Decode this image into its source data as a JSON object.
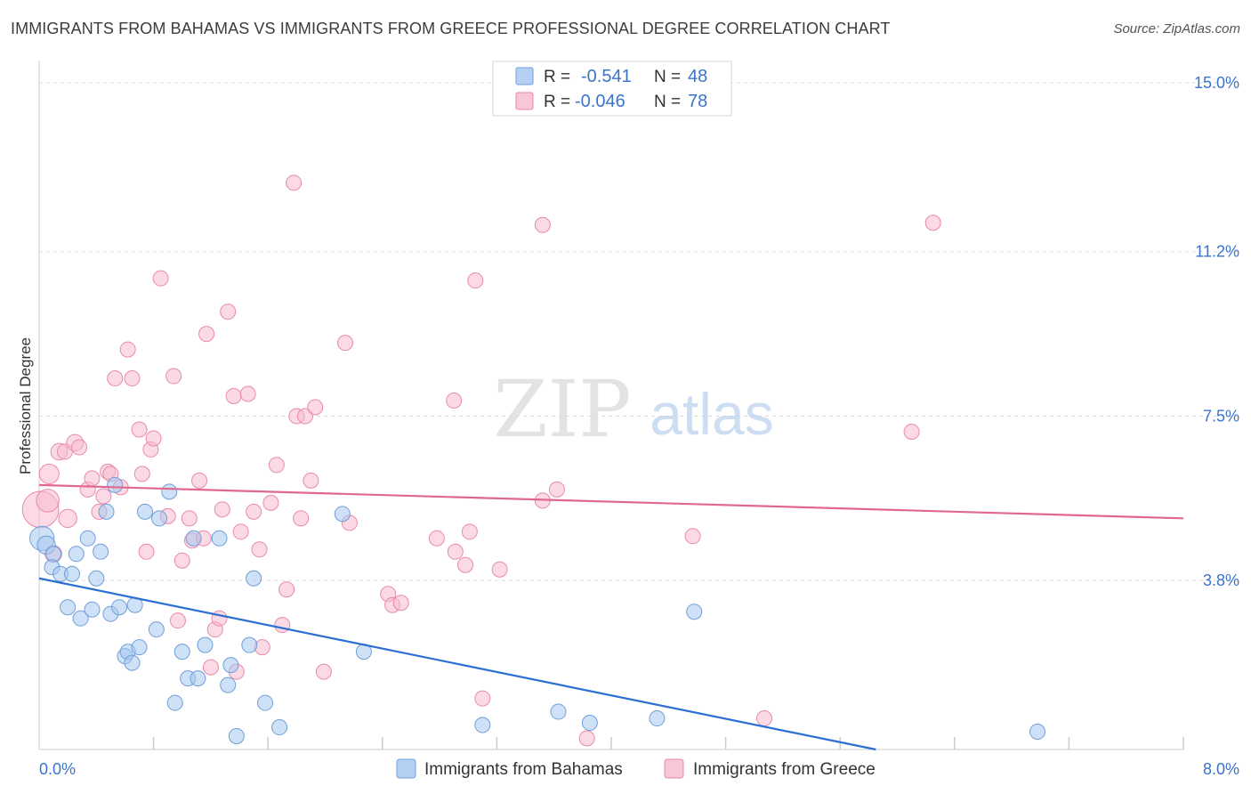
{
  "title": "IMMIGRANTS FROM BAHAMAS VS IMMIGRANTS FROM GREECE PROFESSIONAL DEGREE CORRELATION CHART",
  "source": "Source: ZipAtlas.com",
  "watermark": {
    "zip": "ZIP",
    "atlas": "atlas"
  },
  "colors": {
    "blue_fill": "#a8c8f0",
    "blue_stroke": "#6f9fd8",
    "blue_line": "#2a6fd1",
    "pink_fill": "#f7bcd0",
    "pink_stroke": "#e88aaa",
    "pink_line": "#e06890",
    "accent_text": "#3a74c9",
    "grid": "#dddddd",
    "axis": "#cccccc"
  },
  "legend": {
    "rows": [
      {
        "r_label": "R =",
        "r_value": "-0.541",
        "n_label": "N =",
        "n_value": "48",
        "color": "blue"
      },
      {
        "r_label": "R =",
        "r_value": "-0.046",
        "n_label": "N =",
        "n_value": "78",
        "color": "pink"
      }
    ]
  },
  "bottom_legend": [
    {
      "label": "Immigrants from Bahamas",
      "color": "blue"
    },
    {
      "label": "Immigrants from Greece",
      "color": "pink"
    }
  ],
  "chart_data": {
    "type": "scatter",
    "title": "IMMIGRANTS FROM BAHAMAS VS IMMIGRANTS FROM GREECE PROFESSIONAL DEGREE CORRELATION CHART",
    "xlabel": "",
    "ylabel": "Professional Degree",
    "xlim": [
      0,
      8
    ],
    "ylim": [
      0,
      15.5
    ],
    "x_tick_labels": [
      {
        "value": 0,
        "label": "0.0%"
      },
      {
        "value": 8,
        "label": "8.0%"
      }
    ],
    "y_tick_labels": [
      {
        "value": 3.8,
        "label": "3.8%"
      },
      {
        "value": 7.5,
        "label": "7.5%"
      },
      {
        "value": 11.2,
        "label": "11.2%"
      },
      {
        "value": 15.0,
        "label": "15.0%"
      }
    ],
    "grid": true,
    "legend_position": "top-center",
    "series": [
      {
        "name": "Immigrants from Bahamas",
        "color": "blue",
        "trend": {
          "x": [
            0,
            5.85
          ],
          "y": [
            3.85,
            0.0
          ]
        },
        "points": [
          [
            0.02,
            4.75,
            1.6
          ],
          [
            0.05,
            4.6,
            1.2
          ],
          [
            0.1,
            4.4,
            1.0
          ],
          [
            0.09,
            4.1,
            1.0
          ],
          [
            0.15,
            3.95,
            1.0
          ],
          [
            0.23,
            3.95,
            1.0
          ],
          [
            0.2,
            3.2,
            1.0
          ],
          [
            0.29,
            2.95,
            1.0
          ],
          [
            0.26,
            4.4,
            1.0
          ],
          [
            0.34,
            4.75,
            1.0
          ],
          [
            0.37,
            3.15,
            1.0
          ],
          [
            0.4,
            3.85,
            1.0
          ],
          [
            0.43,
            4.45,
            1.0
          ],
          [
            0.47,
            5.35,
            1.0
          ],
          [
            0.5,
            3.05,
            1.0
          ],
          [
            0.53,
            5.95,
            1.0
          ],
          [
            0.56,
            3.2,
            1.0
          ],
          [
            0.6,
            2.1,
            1.0
          ],
          [
            0.62,
            2.2,
            1.0
          ],
          [
            0.65,
            1.95,
            1.0
          ],
          [
            0.67,
            3.25,
            1.0
          ],
          [
            0.7,
            2.3,
            1.0
          ],
          [
            0.74,
            5.35,
            1.0
          ],
          [
            0.82,
            2.7,
            1.0
          ],
          [
            0.84,
            5.2,
            1.0
          ],
          [
            0.91,
            5.8,
            1.0
          ],
          [
            0.95,
            1.05,
            1.0
          ],
          [
            1.0,
            2.2,
            1.0
          ],
          [
            1.04,
            1.6,
            1.0
          ],
          [
            1.08,
            4.75,
            1.0
          ],
          [
            1.11,
            1.6,
            1.0
          ],
          [
            1.16,
            2.35,
            1.0
          ],
          [
            1.26,
            4.75,
            1.0
          ],
          [
            1.32,
            1.45,
            1.0
          ],
          [
            1.34,
            1.9,
            1.0
          ],
          [
            1.38,
            0.3,
            1.0
          ],
          [
            1.47,
            2.35,
            1.0
          ],
          [
            1.5,
            3.85,
            1.0
          ],
          [
            1.58,
            1.05,
            1.0
          ],
          [
            1.68,
            0.5,
            1.0
          ],
          [
            2.12,
            5.3,
            1.0
          ],
          [
            2.27,
            2.2,
            1.0
          ],
          [
            3.1,
            0.55,
            1.0
          ],
          [
            3.63,
            0.85,
            1.0
          ],
          [
            3.85,
            0.6,
            1.0
          ],
          [
            4.32,
            0.7,
            1.0
          ],
          [
            4.58,
            3.1,
            1.0
          ],
          [
            6.98,
            0.4,
            1.0
          ]
        ]
      },
      {
        "name": "Immigrants from Greece",
        "color": "pink",
        "trend": {
          "x": [
            0,
            8
          ],
          "y": [
            5.95,
            5.2
          ]
        },
        "points": [
          [
            0.01,
            5.4,
            2.4
          ],
          [
            0.06,
            5.6,
            1.5
          ],
          [
            0.07,
            6.2,
            1.3
          ],
          [
            0.1,
            4.4,
            1.1
          ],
          [
            0.14,
            6.7,
            1.1
          ],
          [
            0.18,
            6.7,
            1.0
          ],
          [
            0.2,
            5.2,
            1.2
          ],
          [
            0.25,
            6.9,
            1.1
          ],
          [
            0.28,
            6.8,
            1.0
          ],
          [
            0.34,
            5.85,
            1.0
          ],
          [
            0.37,
            6.1,
            1.0
          ],
          [
            0.42,
            5.35,
            1.0
          ],
          [
            0.45,
            5.7,
            1.0
          ],
          [
            0.48,
            6.25,
            1.0
          ],
          [
            0.5,
            6.2,
            1.0
          ],
          [
            0.53,
            8.35,
            1.0
          ],
          [
            0.57,
            5.9,
            1.0
          ],
          [
            0.62,
            9.0,
            1.0
          ],
          [
            0.65,
            8.35,
            1.0
          ],
          [
            0.7,
            7.2,
            1.0
          ],
          [
            0.72,
            6.2,
            1.0
          ],
          [
            0.75,
            4.45,
            1.0
          ],
          [
            0.78,
            6.75,
            1.0
          ],
          [
            0.8,
            7.0,
            1.0
          ],
          [
            0.85,
            10.6,
            1.0
          ],
          [
            0.9,
            5.25,
            1.0
          ],
          [
            0.94,
            8.4,
            1.0
          ],
          [
            0.97,
            2.9,
            1.0
          ],
          [
            1.0,
            4.25,
            1.0
          ],
          [
            1.05,
            5.2,
            1.0
          ],
          [
            1.07,
            4.7,
            1.0
          ],
          [
            1.12,
            6.05,
            1.0
          ],
          [
            1.15,
            4.75,
            1.0
          ],
          [
            1.17,
            9.35,
            1.0
          ],
          [
            1.2,
            1.85,
            1.0
          ],
          [
            1.23,
            2.7,
            1.0
          ],
          [
            1.26,
            2.95,
            1.0
          ],
          [
            1.28,
            5.4,
            1.0
          ],
          [
            1.32,
            9.85,
            1.0
          ],
          [
            1.36,
            7.95,
            1.0
          ],
          [
            1.38,
            1.75,
            1.0
          ],
          [
            1.41,
            4.9,
            1.0
          ],
          [
            1.46,
            8.0,
            1.0
          ],
          [
            1.5,
            5.35,
            1.0
          ],
          [
            1.54,
            4.5,
            1.0
          ],
          [
            1.56,
            2.3,
            1.0
          ],
          [
            1.62,
            5.55,
            1.0
          ],
          [
            1.66,
            6.4,
            1.0
          ],
          [
            1.7,
            2.8,
            1.0
          ],
          [
            1.73,
            3.6,
            1.0
          ],
          [
            1.78,
            12.75,
            1.0
          ],
          [
            1.8,
            7.5,
            1.0
          ],
          [
            1.83,
            5.2,
            1.0
          ],
          [
            1.86,
            7.5,
            1.0
          ],
          [
            1.9,
            6.05,
            1.0
          ],
          [
            1.93,
            7.7,
            1.0
          ],
          [
            1.99,
            1.75,
            1.0
          ],
          [
            2.14,
            9.15,
            1.0
          ],
          [
            2.17,
            5.1,
            1.0
          ],
          [
            2.44,
            3.5,
            1.0
          ],
          [
            2.47,
            3.25,
            1.0
          ],
          [
            2.53,
            3.3,
            1.0
          ],
          [
            2.78,
            4.75,
            1.0
          ],
          [
            2.9,
            7.85,
            1.0
          ],
          [
            2.91,
            4.45,
            1.0
          ],
          [
            2.98,
            4.15,
            1.0
          ],
          [
            3.01,
            4.9,
            1.0
          ],
          [
            3.05,
            10.55,
            1.0
          ],
          [
            3.1,
            1.15,
            1.0
          ],
          [
            3.22,
            4.05,
            1.0
          ],
          [
            3.52,
            11.8,
            1.0
          ],
          [
            3.52,
            5.6,
            1.0
          ],
          [
            3.62,
            5.85,
            1.0
          ],
          [
            3.83,
            0.25,
            1.0
          ],
          [
            4.57,
            4.8,
            1.0
          ],
          [
            5.07,
            0.7,
            1.0
          ],
          [
            6.1,
            7.15,
            1.0
          ],
          [
            6.25,
            11.85,
            1.0
          ]
        ]
      }
    ]
  }
}
